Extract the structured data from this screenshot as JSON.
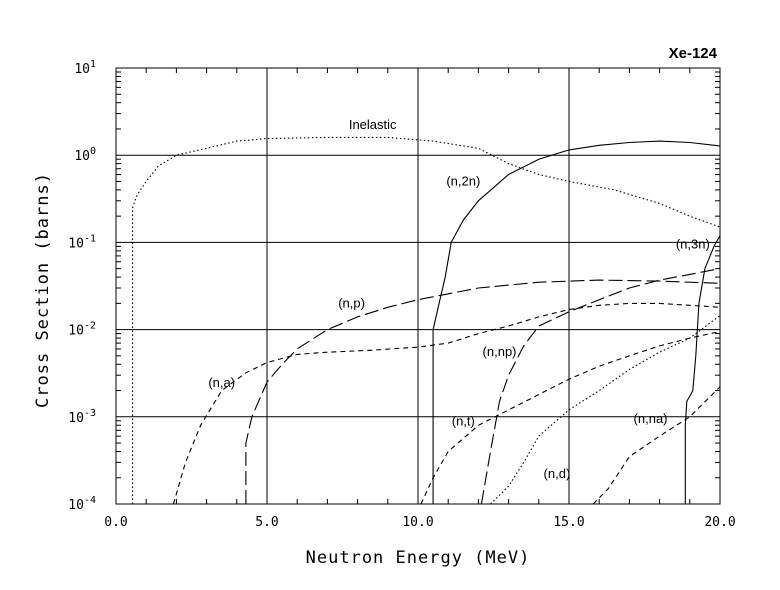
{
  "chart_data": {
    "type": "line",
    "title": "Xe-124",
    "xlabel": "Neutron Energy (MeV)",
    "ylabel": "Cross Section (barns)",
    "xlim": [
      0,
      20
    ],
    "ylim": [
      0.0001,
      10
    ],
    "yscale": "log",
    "grid": true,
    "x_ticks": [
      {
        "value": 0,
        "label": "0.0"
      },
      {
        "value": 5,
        "label": "5.0"
      },
      {
        "value": 10,
        "label": "10.0"
      },
      {
        "value": 15,
        "label": "15.0"
      },
      {
        "value": 20,
        "label": "20.0"
      }
    ],
    "y_ticks": [
      {
        "value": 10,
        "base": "10",
        "exp": "1"
      },
      {
        "value": 1,
        "base": "10",
        "exp": "0"
      },
      {
        "value": 0.1,
        "base": "10",
        "exp": "-1"
      },
      {
        "value": 0.01,
        "base": "10",
        "exp": "-2"
      },
      {
        "value": 0.001,
        "base": "10",
        "exp": "-3"
      },
      {
        "value": 0.0001,
        "base": "10",
        "exp": "-4"
      }
    ],
    "series": [
      {
        "name": "Inelastic",
        "style": "dotted",
        "label_at": [
          8.5,
          2.0
        ],
        "points": [
          [
            0.55,
            0.0001
          ],
          [
            0.55,
            0.25
          ],
          [
            0.7,
            0.35
          ],
          [
            1.0,
            0.5
          ],
          [
            1.4,
            0.75
          ],
          [
            2.0,
            1.0
          ],
          [
            3.0,
            1.2
          ],
          [
            4.0,
            1.45
          ],
          [
            5.0,
            1.55
          ],
          [
            7.0,
            1.6
          ],
          [
            9.0,
            1.6
          ],
          [
            10.5,
            1.45
          ],
          [
            12.0,
            1.2
          ],
          [
            13.0,
            0.8
          ],
          [
            14.0,
            0.6
          ],
          [
            15.0,
            0.5
          ],
          [
            16.5,
            0.4
          ],
          [
            18.0,
            0.28
          ],
          [
            19.0,
            0.2
          ],
          [
            20.0,
            0.15
          ]
        ]
      },
      {
        "name": "(n,2n)",
        "style": "solid",
        "label_at": [
          11.5,
          0.45
        ],
        "points": [
          [
            10.5,
            0.0001
          ],
          [
            10.5,
            0.01
          ],
          [
            10.7,
            0.02
          ],
          [
            10.9,
            0.04
          ],
          [
            11.1,
            0.1
          ],
          [
            11.5,
            0.18
          ],
          [
            12.0,
            0.3
          ],
          [
            13.0,
            0.6
          ],
          [
            14.0,
            0.9
          ],
          [
            15.0,
            1.15
          ],
          [
            16.0,
            1.3
          ],
          [
            17.0,
            1.4
          ],
          [
            18.0,
            1.45
          ],
          [
            19.0,
            1.4
          ],
          [
            20.0,
            1.28
          ]
        ]
      },
      {
        "name": "(n,3n)",
        "style": "solid",
        "label_at": [
          19.1,
          0.085
        ],
        "points": [
          [
            18.85,
            0.0001
          ],
          [
            18.85,
            0.0008
          ],
          [
            18.9,
            0.0015
          ],
          [
            19.1,
            0.002
          ],
          [
            19.2,
            0.005
          ],
          [
            19.3,
            0.02
          ],
          [
            19.5,
            0.05
          ],
          [
            19.8,
            0.09
          ],
          [
            20.0,
            0.12
          ]
        ]
      },
      {
        "name": "(n,p)",
        "style": "longdash",
        "label_at": [
          7.8,
          0.018
        ],
        "points": [
          [
            4.3,
            0.0001
          ],
          [
            4.3,
            0.0005
          ],
          [
            4.5,
            0.001
          ],
          [
            5.0,
            0.0025
          ],
          [
            5.5,
            0.004
          ],
          [
            6.0,
            0.006
          ],
          [
            7.0,
            0.01
          ],
          [
            8.0,
            0.014
          ],
          [
            9.0,
            0.018
          ],
          [
            10.0,
            0.022
          ],
          [
            12.0,
            0.03
          ],
          [
            14.0,
            0.035
          ],
          [
            16.0,
            0.037
          ],
          [
            18.0,
            0.036
          ],
          [
            20.0,
            0.034
          ]
        ]
      },
      {
        "name": "(n,a)",
        "style": "dash",
        "label_at": [
          3.5,
          0.0022
        ],
        "points": [
          [
            1.9,
            0.0001
          ],
          [
            2.3,
            0.0003
          ],
          [
            2.8,
            0.0008
          ],
          [
            3.5,
            0.002
          ],
          [
            4.3,
            0.0032
          ],
          [
            5.0,
            0.0042
          ],
          [
            6.0,
            0.0052
          ],
          [
            7.0,
            0.0055
          ],
          [
            8.5,
            0.0058
          ],
          [
            10.0,
            0.0063
          ],
          [
            11.0,
            0.007
          ],
          [
            12.0,
            0.009
          ],
          [
            13.0,
            0.011
          ],
          [
            14.0,
            0.014
          ],
          [
            15.0,
            0.017
          ],
          [
            16.0,
            0.019
          ],
          [
            17.0,
            0.02
          ],
          [
            18.0,
            0.02
          ],
          [
            19.0,
            0.019
          ],
          [
            20.0,
            0.018
          ]
        ]
      },
      {
        "name": "(n,np)",
        "style": "longdash",
        "label_at": [
          12.7,
          0.005
        ],
        "points": [
          [
            12.1,
            0.0001
          ],
          [
            12.4,
            0.0004
          ],
          [
            12.7,
            0.0015
          ],
          [
            13.0,
            0.003
          ],
          [
            13.5,
            0.0065
          ],
          [
            14.0,
            0.011
          ],
          [
            15.0,
            0.016
          ],
          [
            16.0,
            0.022
          ],
          [
            17.0,
            0.03
          ],
          [
            18.0,
            0.037
          ],
          [
            19.0,
            0.043
          ],
          [
            20.0,
            0.05
          ]
        ]
      },
      {
        "name": "(n,t)",
        "style": "dash",
        "label_at": [
          11.5,
          0.0008
        ],
        "points": [
          [
            10.1,
            0.0001
          ],
          [
            10.5,
            0.0002
          ],
          [
            11.0,
            0.0004
          ],
          [
            12.0,
            0.0008
          ],
          [
            13.0,
            0.0012
          ],
          [
            14.0,
            0.0018
          ],
          [
            15.0,
            0.0027
          ],
          [
            16.0,
            0.0038
          ],
          [
            17.0,
            0.005
          ],
          [
            18.0,
            0.0065
          ],
          [
            19.0,
            0.008
          ],
          [
            20.0,
            0.0095
          ]
        ]
      },
      {
        "name": "(n,d)",
        "style": "dotted",
        "label_at": [
          14.6,
          0.0002
        ],
        "points": [
          [
            12.4,
            0.0001
          ],
          [
            13.0,
            0.00016
          ],
          [
            13.5,
            0.0003
          ],
          [
            14.0,
            0.0006
          ],
          [
            15.0,
            0.0012
          ],
          [
            16.0,
            0.002
          ],
          [
            17.0,
            0.0035
          ],
          [
            18.0,
            0.0055
          ],
          [
            19.0,
            0.008
          ],
          [
            20.0,
            0.0145
          ]
        ]
      },
      {
        "name": "(n,na)",
        "style": "dash",
        "label_at": [
          17.7,
          0.00085
        ],
        "points": [
          [
            15.8,
            0.0001
          ],
          [
            16.3,
            0.00015
          ],
          [
            17.0,
            0.00035
          ],
          [
            18.0,
            0.0006
          ],
          [
            19.0,
            0.001
          ],
          [
            20.0,
            0.0022
          ]
        ]
      }
    ]
  }
}
